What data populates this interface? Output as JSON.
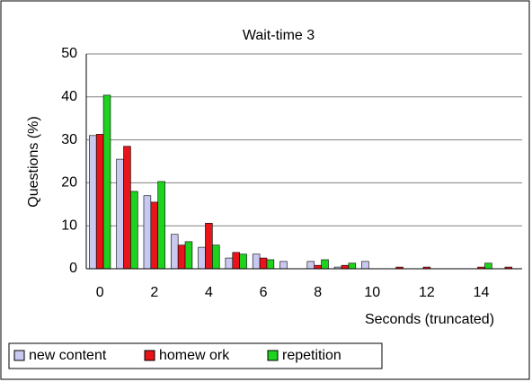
{
  "chart_data": {
    "type": "bar",
    "title": "Wait-time 3",
    "x_label": "Seconds (truncated)",
    "y_label": "Questions (%)",
    "categories": [
      "0",
      null,
      "2",
      null,
      "4",
      null,
      "6",
      null,
      "8",
      null,
      "10",
      null,
      "12",
      null,
      "14",
      null
    ],
    "series": [
      {
        "name": "new content",
        "color": "#c8c8f0",
        "values": [
          31,
          25.5,
          17,
          8,
          5,
          2.5,
          3.4,
          1.7,
          1.7,
          0.4,
          1.7,
          0,
          0,
          0,
          0,
          0
        ]
      },
      {
        "name": "homew ork",
        "color": "#e8141a",
        "values": [
          31.3,
          28.5,
          15.5,
          5.5,
          10.6,
          3.8,
          2.5,
          0,
          0.8,
          0.8,
          0,
          0.4,
          0.4,
          0,
          0.4,
          0.4
        ]
      },
      {
        "name": "repetition",
        "color": "#1ed21e",
        "values": [
          40.4,
          18,
          20.3,
          6.3,
          5.5,
          3.4,
          2.1,
          0,
          2.1,
          1.3,
          0,
          0,
          0,
          0,
          1.3,
          0
        ]
      }
    ],
    "ylim": [
      0,
      50
    ],
    "yticks": [
      0,
      10,
      20,
      30,
      40,
      50
    ],
    "grid": true
  }
}
